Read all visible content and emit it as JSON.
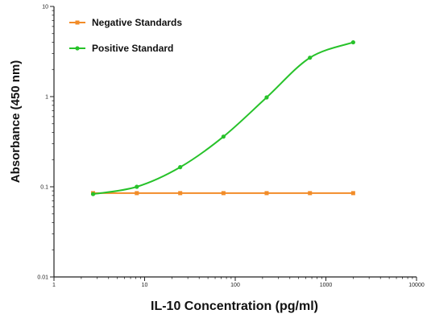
{
  "colors": {
    "negative": "#f28c28",
    "positive": "#27c22a",
    "axis": "#222222",
    "background": "#ffffff"
  },
  "chart_data": {
    "type": "line",
    "xlabel": "IL-10 Concentration (pg/ml)",
    "ylabel": "Absorbance (450 nm)",
    "xscale": "log",
    "yscale": "log",
    "xlim": [
      1,
      10000
    ],
    "ylim": [
      0.01,
      10
    ],
    "x_ticks": [
      1,
      10,
      100,
      1000,
      10000
    ],
    "x_tick_labels": [
      "1",
      "10",
      "100",
      "1000",
      "10000"
    ],
    "y_ticks": [
      0.01,
      0.1,
      1,
      10
    ],
    "y_tick_labels": [
      "0.01",
      "0.1",
      "1",
      "10"
    ],
    "grid": false,
    "legend_position": "top-left",
    "series": [
      {
        "name": "Negative Standards",
        "color": "#f28c28",
        "marker": "square",
        "x": [
          2.7,
          8.2,
          24.7,
          74.1,
          222,
          667,
          2000
        ],
        "y": [
          0.085,
          0.085,
          0.085,
          0.085,
          0.085,
          0.085,
          0.085
        ]
      },
      {
        "name": "Positive Standard",
        "color": "#27c22a",
        "marker": "circle",
        "x": [
          2.7,
          8.2,
          24.7,
          74.1,
          222,
          667,
          2000
        ],
        "y": [
          0.083,
          0.1,
          0.165,
          0.36,
          0.98,
          2.7,
          4.0
        ]
      }
    ]
  }
}
